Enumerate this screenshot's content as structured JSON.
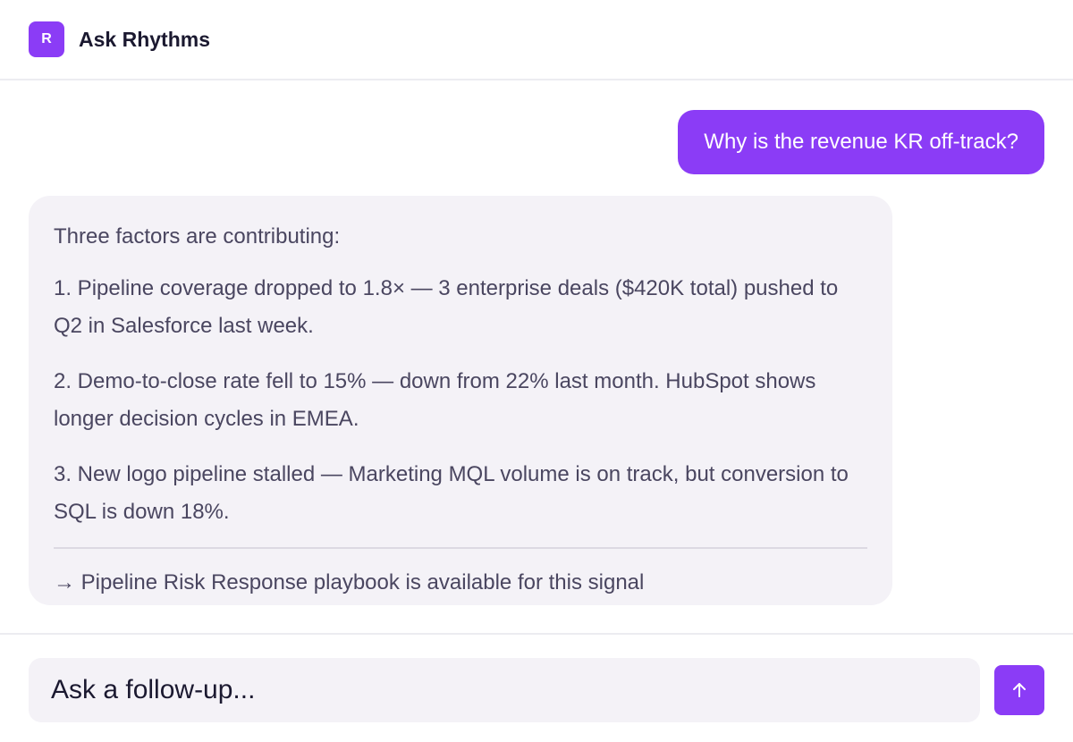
{
  "header": {
    "logo_letter": "R",
    "title": "Ask Rhythms"
  },
  "conversation": {
    "user_message": "Why is the revenue KR off-track?",
    "assistant": {
      "intro": "Three factors are contributing:",
      "points": [
        "1. Pipeline coverage dropped to 1.8× — 3 enterprise deals ($420K total) pushed to Q2 in Salesforce last week.",
        "2. Demo-to-close rate fell to 15% — down from 22% last month. HubSpot shows longer decision cycles in EMEA.",
        "3. New logo pipeline stalled — Marketing MQL volume is on track, but conversion to SQL is down 18%."
      ],
      "playbook_link": "→ Pipeline Risk Response playbook is available for this signal"
    }
  },
  "composer": {
    "placeholder": "Ask a follow-up...",
    "send_icon": "arrow-up-icon"
  },
  "colors": {
    "accent": "#8b3cf6",
    "assistant_bubble": "#f4f2f7",
    "text": "#4a4660",
    "title": "#1b1930"
  }
}
